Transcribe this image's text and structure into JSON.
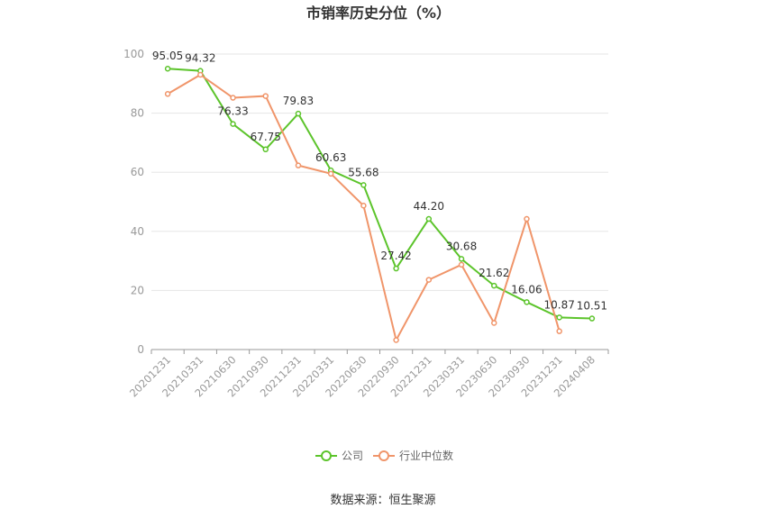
{
  "chart_data": {
    "type": "line",
    "title": "市销率历史分位（%）",
    "x": [
      "20201231",
      "20210331",
      "20210630",
      "20210930",
      "20211231",
      "20220331",
      "20220630",
      "20220930",
      "20221231",
      "20230331",
      "20230630",
      "20230930",
      "20231231",
      "20240408"
    ],
    "series": [
      {
        "name": "公司",
        "color": "#5cc42b",
        "values": [
          95.05,
          94.32,
          76.33,
          67.75,
          79.83,
          60.63,
          55.68,
          27.42,
          44.2,
          30.68,
          21.62,
          16.06,
          10.87,
          10.51
        ],
        "labels": [
          "95.05",
          "94.32",
          "76.33",
          "67.75",
          "79.83",
          "60.63",
          "55.68",
          "27.42",
          "44.20",
          "30.68",
          "21.62",
          "16.06",
          "10.87",
          "10.51"
        ]
      },
      {
        "name": "行业中位数",
        "color": "#f0956a",
        "values": [
          86.5,
          93.0,
          85.2,
          85.8,
          62.3,
          59.5,
          48.7,
          3.2,
          23.6,
          28.7,
          9.0,
          44.2,
          6.2,
          null
        ]
      }
    ],
    "yticks": [
      "0",
      "20",
      "40",
      "60",
      "80",
      "100"
    ],
    "ylim": [
      0,
      100
    ],
    "grid": true,
    "legend_position": "bottom-center"
  },
  "source_text": "数据来源：恒生聚源"
}
